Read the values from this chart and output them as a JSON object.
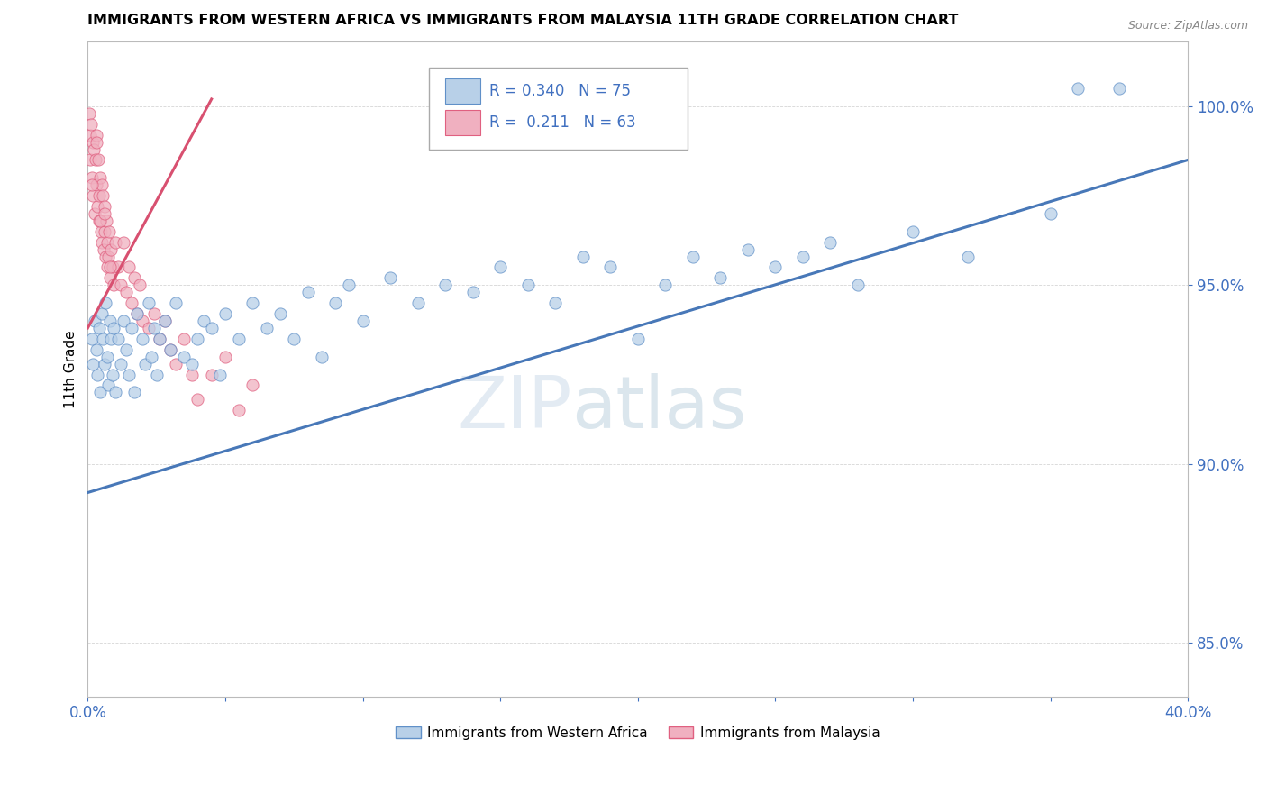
{
  "title": "IMMIGRANTS FROM WESTERN AFRICA VS IMMIGRANTS FROM MALAYSIA 11TH GRADE CORRELATION CHART",
  "source": "Source: ZipAtlas.com",
  "ylabel": "11th Grade",
  "yticks": [
    85.0,
    90.0,
    95.0,
    100.0
  ],
  "ytick_labels": [
    "85.0%",
    "90.0%",
    "95.0%",
    "100.0%"
  ],
  "xmin": 0.0,
  "xmax": 40.0,
  "ymin": 83.5,
  "ymax": 101.8,
  "r_blue": 0.34,
  "n_blue": 75,
  "r_pink": 0.211,
  "n_pink": 63,
  "legend_label_blue": "Immigrants from Western Africa",
  "legend_label_pink": "Immigrants from Malaysia",
  "color_blue": "#b8d0e8",
  "color_pink": "#f0b0c0",
  "edge_color_blue": "#6090c8",
  "edge_color_pink": "#e06080",
  "line_color_blue": "#4878b8",
  "line_color_pink": "#d85070",
  "legend_text_color": "#4070c0",
  "watermark_zip": "ZIP",
  "watermark_atlas": "atlas",
  "scatter_blue": [
    [
      0.15,
      93.5
    ],
    [
      0.2,
      92.8
    ],
    [
      0.25,
      94.0
    ],
    [
      0.3,
      93.2
    ],
    [
      0.35,
      92.5
    ],
    [
      0.4,
      93.8
    ],
    [
      0.45,
      92.0
    ],
    [
      0.5,
      94.2
    ],
    [
      0.55,
      93.5
    ],
    [
      0.6,
      92.8
    ],
    [
      0.65,
      94.5
    ],
    [
      0.7,
      93.0
    ],
    [
      0.75,
      92.2
    ],
    [
      0.8,
      94.0
    ],
    [
      0.85,
      93.5
    ],
    [
      0.9,
      92.5
    ],
    [
      0.95,
      93.8
    ],
    [
      1.0,
      92.0
    ],
    [
      1.1,
      93.5
    ],
    [
      1.2,
      92.8
    ],
    [
      1.3,
      94.0
    ],
    [
      1.4,
      93.2
    ],
    [
      1.5,
      92.5
    ],
    [
      1.6,
      93.8
    ],
    [
      1.7,
      92.0
    ],
    [
      1.8,
      94.2
    ],
    [
      2.0,
      93.5
    ],
    [
      2.1,
      92.8
    ],
    [
      2.2,
      94.5
    ],
    [
      2.3,
      93.0
    ],
    [
      2.4,
      93.8
    ],
    [
      2.5,
      92.5
    ],
    [
      2.6,
      93.5
    ],
    [
      2.8,
      94.0
    ],
    [
      3.0,
      93.2
    ],
    [
      3.2,
      94.5
    ],
    [
      3.5,
      93.0
    ],
    [
      3.8,
      92.8
    ],
    [
      4.0,
      93.5
    ],
    [
      4.2,
      94.0
    ],
    [
      4.5,
      93.8
    ],
    [
      4.8,
      92.5
    ],
    [
      5.0,
      94.2
    ],
    [
      5.5,
      93.5
    ],
    [
      6.0,
      94.5
    ],
    [
      6.5,
      93.8
    ],
    [
      7.0,
      94.2
    ],
    [
      7.5,
      93.5
    ],
    [
      8.0,
      94.8
    ],
    [
      8.5,
      93.0
    ],
    [
      9.0,
      94.5
    ],
    [
      9.5,
      95.0
    ],
    [
      10.0,
      94.0
    ],
    [
      11.0,
      95.2
    ],
    [
      12.0,
      94.5
    ],
    [
      13.0,
      95.0
    ],
    [
      14.0,
      94.8
    ],
    [
      15.0,
      95.5
    ],
    [
      16.0,
      95.0
    ],
    [
      17.0,
      94.5
    ],
    [
      18.0,
      95.8
    ],
    [
      19.0,
      95.5
    ],
    [
      20.0,
      93.5
    ],
    [
      21.0,
      95.0
    ],
    [
      22.0,
      95.8
    ],
    [
      23.0,
      95.2
    ],
    [
      24.0,
      96.0
    ],
    [
      25.0,
      95.5
    ],
    [
      26.0,
      95.8
    ],
    [
      27.0,
      96.2
    ],
    [
      28.0,
      95.0
    ],
    [
      30.0,
      96.5
    ],
    [
      32.0,
      95.8
    ],
    [
      35.0,
      97.0
    ],
    [
      36.0,
      100.5
    ],
    [
      37.5,
      100.5
    ]
  ],
  "scatter_pink": [
    [
      0.05,
      99.8
    ],
    [
      0.08,
      99.2
    ],
    [
      0.1,
      98.5
    ],
    [
      0.12,
      99.5
    ],
    [
      0.15,
      98.0
    ],
    [
      0.18,
      99.0
    ],
    [
      0.2,
      97.5
    ],
    [
      0.22,
      98.8
    ],
    [
      0.25,
      97.0
    ],
    [
      0.28,
      98.5
    ],
    [
      0.3,
      97.8
    ],
    [
      0.32,
      99.2
    ],
    [
      0.35,
      97.2
    ],
    [
      0.38,
      98.5
    ],
    [
      0.4,
      96.8
    ],
    [
      0.42,
      97.5
    ],
    [
      0.45,
      98.0
    ],
    [
      0.48,
      96.5
    ],
    [
      0.5,
      97.8
    ],
    [
      0.52,
      96.2
    ],
    [
      0.55,
      97.5
    ],
    [
      0.58,
      96.0
    ],
    [
      0.6,
      97.2
    ],
    [
      0.62,
      96.5
    ],
    [
      0.65,
      95.8
    ],
    [
      0.68,
      96.8
    ],
    [
      0.7,
      95.5
    ],
    [
      0.72,
      96.2
    ],
    [
      0.75,
      95.8
    ],
    [
      0.78,
      96.5
    ],
    [
      0.8,
      95.2
    ],
    [
      0.85,
      96.0
    ],
    [
      0.9,
      95.5
    ],
    [
      0.95,
      95.0
    ],
    [
      1.0,
      96.2
    ],
    [
      1.1,
      95.5
    ],
    [
      1.2,
      95.0
    ],
    [
      1.3,
      96.2
    ],
    [
      1.4,
      94.8
    ],
    [
      1.5,
      95.5
    ],
    [
      1.6,
      94.5
    ],
    [
      1.7,
      95.2
    ],
    [
      1.8,
      94.2
    ],
    [
      1.9,
      95.0
    ],
    [
      2.0,
      94.0
    ],
    [
      2.2,
      93.8
    ],
    [
      2.4,
      94.2
    ],
    [
      2.6,
      93.5
    ],
    [
      2.8,
      94.0
    ],
    [
      3.0,
      93.2
    ],
    [
      3.2,
      92.8
    ],
    [
      3.5,
      93.5
    ],
    [
      3.8,
      92.5
    ],
    [
      4.0,
      91.8
    ],
    [
      4.5,
      92.5
    ],
    [
      5.0,
      93.0
    ],
    [
      5.5,
      91.5
    ],
    [
      6.0,
      92.2
    ],
    [
      0.15,
      97.8
    ],
    [
      0.3,
      99.0
    ],
    [
      0.45,
      96.8
    ],
    [
      0.6,
      97.0
    ],
    [
      0.8,
      95.5
    ]
  ],
  "blue_trend": [
    0.0,
    89.2,
    40.0,
    98.5
  ],
  "pink_trend": [
    0.0,
    93.8,
    4.5,
    100.2
  ]
}
